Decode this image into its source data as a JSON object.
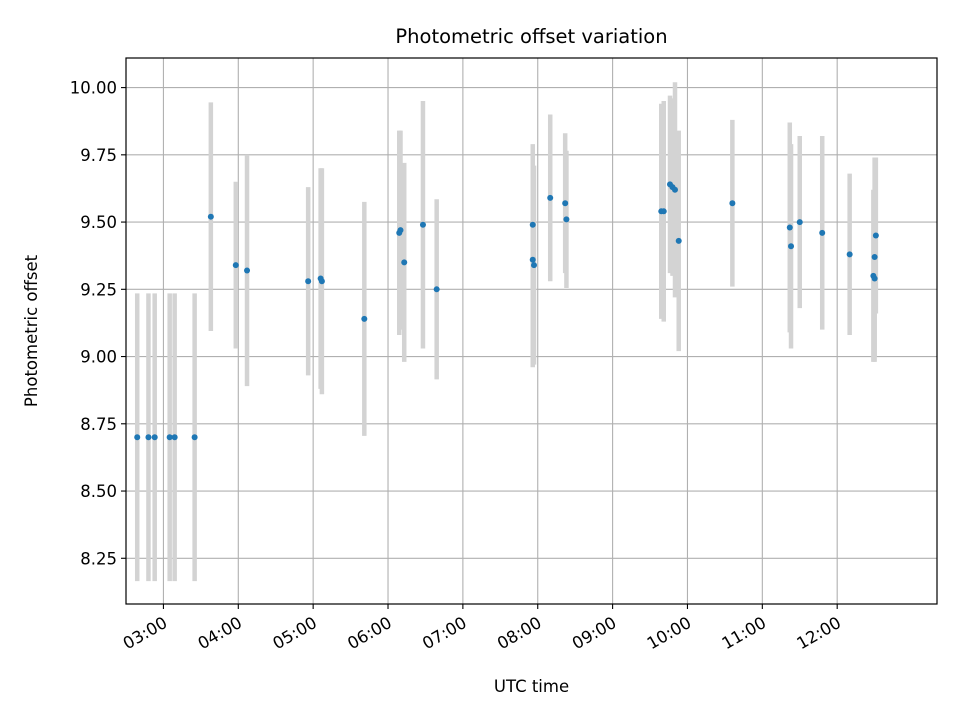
{
  "chart_data": {
    "type": "scatter",
    "title": "Photometric offset variation",
    "xlabel": "UTC time",
    "ylabel": "Photometric offset",
    "x_unit": "hours UTC",
    "xlim": [
      "02:30",
      "13:20"
    ],
    "ylim": [
      8.08,
      10.11
    ],
    "x_ticks": [
      "03:00",
      "04:00",
      "05:00",
      "06:00",
      "07:00",
      "08:00",
      "09:00",
      "10:00",
      "11:00",
      "12:00"
    ],
    "y_ticks": [
      "8.25",
      "8.50",
      "8.75",
      "9.00",
      "9.25",
      "9.50",
      "9.75",
      "10.00"
    ],
    "grid": true,
    "colors": {
      "point": "#1f77b4",
      "errorbar": "#d3d3d3",
      "grid": "#b0b0b0"
    },
    "points": [
      {
        "x": "02:39",
        "y": 8.7,
        "yerr": 0.535
      },
      {
        "x": "02:48",
        "y": 8.7,
        "yerr": 0.535
      },
      {
        "x": "02:53",
        "y": 8.7,
        "yerr": 0.535
      },
      {
        "x": "03:05",
        "y": 8.7,
        "yerr": 0.535
      },
      {
        "x": "03:09",
        "y": 8.7,
        "yerr": 0.535
      },
      {
        "x": "03:25",
        "y": 8.7,
        "yerr": 0.535
      },
      {
        "x": "03:38",
        "y": 9.52,
        "yerr": 0.425
      },
      {
        "x": "03:58",
        "y": 9.34,
        "yerr": 0.31
      },
      {
        "x": "04:07",
        "y": 9.32,
        "yerr": 0.43
      },
      {
        "x": "04:56",
        "y": 9.28,
        "yerr": 0.35
      },
      {
        "x": "05:06",
        "y": 9.29,
        "yerr": 0.41
      },
      {
        "x": "05:07",
        "y": 9.28,
        "yerr": 0.42
      },
      {
        "x": "05:41",
        "y": 9.14,
        "yerr": 0.435
      },
      {
        "x": "06:09",
        "y": 9.46,
        "yerr": 0.38
      },
      {
        "x": "06:10",
        "y": 9.47,
        "yerr": 0.37
      },
      {
        "x": "06:13",
        "y": 9.35,
        "yerr": 0.37
      },
      {
        "x": "06:28",
        "y": 9.49,
        "yerr": 0.46
      },
      {
        "x": "06:39",
        "y": 9.25,
        "yerr": 0.335
      },
      {
        "x": "07:56",
        "y": 9.49,
        "yerr": 0.3
      },
      {
        "x": "07:56",
        "y": 9.36,
        "yerr": 0.4
      },
      {
        "x": "07:57",
        "y": 9.34,
        "yerr": 0.37
      },
      {
        "x": "08:10",
        "y": 9.59,
        "yerr": 0.31
      },
      {
        "x": "08:22",
        "y": 9.57,
        "yerr": 0.26
      },
      {
        "x": "08:23",
        "y": 9.51,
        "yerr": 0.255
      },
      {
        "x": "09:39",
        "y": 9.54,
        "yerr": 0.4
      },
      {
        "x": "09:41",
        "y": 9.54,
        "yerr": 0.41
      },
      {
        "x": "09:46",
        "y": 9.64,
        "yerr": 0.33
      },
      {
        "x": "09:48",
        "y": 9.63,
        "yerr": 0.33
      },
      {
        "x": "09:50",
        "y": 9.62,
        "yerr": 0.4
      },
      {
        "x": "09:53",
        "y": 9.43,
        "yerr": 0.41
      },
      {
        "x": "10:36",
        "y": 9.57,
        "yerr": 0.31
      },
      {
        "x": "11:22",
        "y": 9.48,
        "yerr": 0.39
      },
      {
        "x": "11:23",
        "y": 9.41,
        "yerr": 0.38
      },
      {
        "x": "11:30",
        "y": 9.5,
        "yerr": 0.32
      },
      {
        "x": "11:48",
        "y": 9.46,
        "yerr": 0.36
      },
      {
        "x": "12:10",
        "y": 9.38,
        "yerr": 0.3
      },
      {
        "x": "12:29",
        "y": 9.3,
        "yerr": 0.32
      },
      {
        "x": "12:30",
        "y": 9.29,
        "yerr": 0.31
      },
      {
        "x": "12:30",
        "y": 9.37,
        "yerr": 0.37
      },
      {
        "x": "12:31",
        "y": 9.45,
        "yerr": 0.29
      }
    ]
  }
}
